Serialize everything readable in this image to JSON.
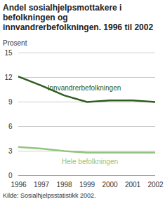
{
  "chart_data": {
    "type": "line",
    "title": "Andel sosialhjelpsmottakere i befolkningen og innvandrerbefolkningen. 1996 til 2002",
    "ylabel": "Prosent",
    "source": "Kilde: Sosialhjelpsstatistikk 2002.",
    "x": [
      1996,
      1997,
      1998,
      1999,
      2000,
      2001,
      2002
    ],
    "series": [
      {
        "name": "Innvandrerbefolkningen",
        "color": "#2e5d1f",
        "values": [
          12.1,
          11.0,
          9.8,
          9.0,
          9.2,
          9.2,
          9.0
        ]
      },
      {
        "name": "Hele befolkningen",
        "color": "#93c47d",
        "values": [
          3.5,
          3.3,
          3.0,
          2.8,
          2.8,
          2.8,
          2.8
        ]
      }
    ],
    "xlim": [
      1996,
      2002
    ],
    "xticks": [
      1996,
      1997,
      1998,
      1999,
      2000,
      2001,
      2002
    ],
    "ylim": [
      0,
      15
    ],
    "yticks": [
      0,
      3,
      6,
      9,
      12,
      15
    ],
    "grid": true
  }
}
